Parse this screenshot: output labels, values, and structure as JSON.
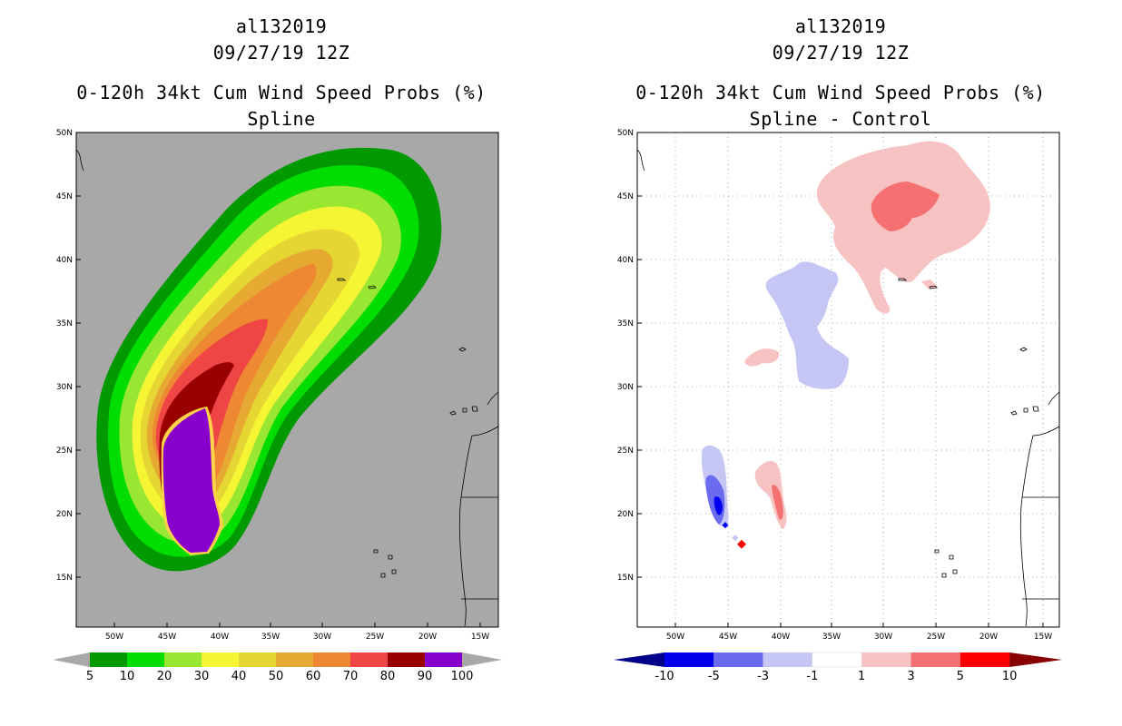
{
  "left_panel": {
    "storm_id": "al132019",
    "date": "09/27/19 12Z",
    "product": "0-120h 34kt Cum Wind Speed Probs (%)",
    "subtitle": "Spline",
    "colorbar": {
      "labels": [
        "5",
        "10",
        "20",
        "30",
        "40",
        "50",
        "60",
        "70",
        "80",
        "90",
        "100"
      ],
      "colors": [
        "#009900",
        "#00dd00",
        "#99e633",
        "#f5f533",
        "#e6d633",
        "#e6aa33",
        "#ee8833",
        "#f04545",
        "#990000",
        "#8800cc"
      ]
    }
  },
  "right_panel": {
    "storm_id": "al132019",
    "date": "09/27/19 12Z",
    "product": "0-120h 34kt Cum Wind Speed Probs (%)",
    "subtitle": "Spline - Control",
    "colorbar": {
      "labels": [
        "-10",
        "-5",
        "-3",
        "-1",
        "1",
        "3",
        "5",
        "10"
      ],
      "colors": [
        "#00008b",
        "#0000ee",
        "#6b6bf0",
        "#c6c6f5",
        "#ffffff",
        "#f7c2c2",
        "#f57070",
        "#ff0000",
        "#880000"
      ]
    }
  },
  "lat_labels": [
    "50N",
    "45N",
    "40N",
    "35N",
    "30N",
    "25N",
    "20N",
    "15N"
  ],
  "lon_labels": [
    "50W",
    "45W",
    "40W",
    "35W",
    "30W",
    "25W",
    "20W",
    "15W"
  ]
}
